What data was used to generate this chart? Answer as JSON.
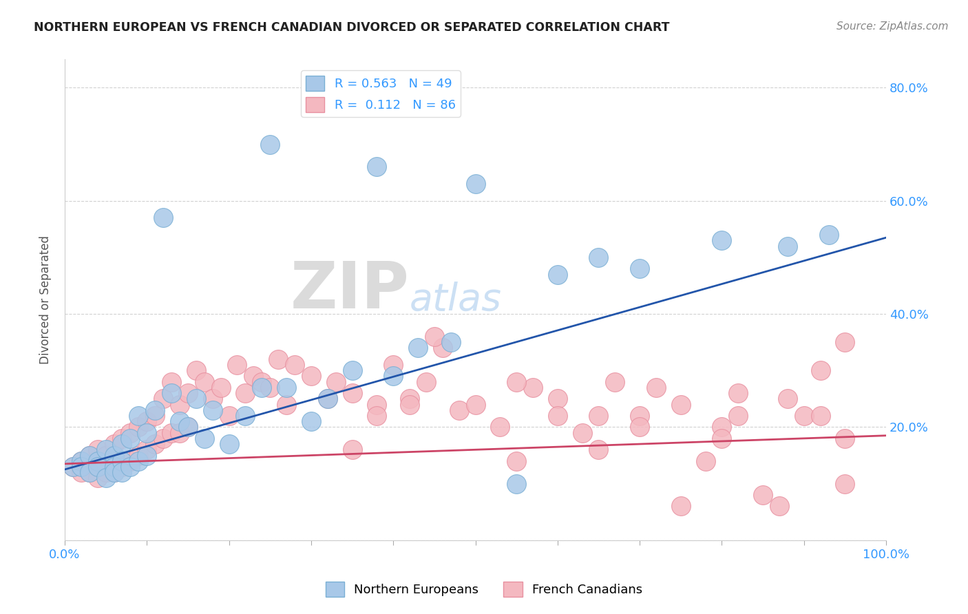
{
  "title": "NORTHERN EUROPEAN VS FRENCH CANADIAN DIVORCED OR SEPARATED CORRELATION CHART",
  "source": "Source: ZipAtlas.com",
  "ylabel": "Divorced or Separated",
  "xlabel": "",
  "xlim": [
    0.0,
    1.0
  ],
  "ylim": [
    0.0,
    0.85
  ],
  "xticks": [
    0.0,
    0.1,
    0.2,
    0.3,
    0.4,
    0.5,
    0.6,
    0.7,
    0.8,
    0.9,
    1.0
  ],
  "xticklabels": [
    "0.0%",
    "",
    "",
    "",
    "",
    "",
    "",
    "",
    "",
    "",
    "100.0%"
  ],
  "ytick_positions": [
    0.0,
    0.2,
    0.4,
    0.6,
    0.8
  ],
  "yticklabels": [
    "",
    "20.0%",
    "40.0%",
    "60.0%",
    "80.0%"
  ],
  "blue_color": "#a8c8e8",
  "pink_color": "#f4b8c0",
  "blue_edge_color": "#7aafd4",
  "pink_edge_color": "#e890a0",
  "blue_line_color": "#2255aa",
  "pink_line_color": "#cc4466",
  "watermark_zip": "ZIP",
  "watermark_atlas": "atlas",
  "title_color": "#222222",
  "axis_label_color": "#555555",
  "tick_color": "#3399ff",
  "grid_color": "#cccccc",
  "background_color": "#ffffff",
  "blue_line_x0": 0.0,
  "blue_line_y0": 0.125,
  "blue_line_x1": 1.0,
  "blue_line_y1": 0.535,
  "pink_line_x0": 0.0,
  "pink_line_y0": 0.135,
  "pink_line_x1": 1.0,
  "pink_line_y1": 0.185,
  "blue_scatter_x": [
    0.01,
    0.02,
    0.02,
    0.03,
    0.03,
    0.04,
    0.04,
    0.05,
    0.05,
    0.06,
    0.06,
    0.06,
    0.07,
    0.07,
    0.07,
    0.08,
    0.08,
    0.09,
    0.09,
    0.1,
    0.1,
    0.11,
    0.12,
    0.13,
    0.14,
    0.15,
    0.16,
    0.17,
    0.18,
    0.2,
    0.22,
    0.24,
    0.25,
    0.27,
    0.3,
    0.32,
    0.35,
    0.38,
    0.4,
    0.43,
    0.47,
    0.5,
    0.55,
    0.6,
    0.65,
    0.7,
    0.8,
    0.88,
    0.93
  ],
  "blue_scatter_y": [
    0.13,
    0.14,
    0.13,
    0.15,
    0.12,
    0.14,
    0.13,
    0.16,
    0.11,
    0.15,
    0.13,
    0.12,
    0.17,
    0.14,
    0.12,
    0.18,
    0.13,
    0.22,
    0.14,
    0.19,
    0.15,
    0.23,
    0.57,
    0.26,
    0.21,
    0.2,
    0.25,
    0.18,
    0.23,
    0.17,
    0.22,
    0.27,
    0.7,
    0.27,
    0.21,
    0.25,
    0.3,
    0.66,
    0.29,
    0.34,
    0.35,
    0.63,
    0.1,
    0.47,
    0.5,
    0.48,
    0.53,
    0.52,
    0.54
  ],
  "pink_scatter_x": [
    0.01,
    0.02,
    0.02,
    0.03,
    0.03,
    0.04,
    0.04,
    0.05,
    0.05,
    0.06,
    0.06,
    0.07,
    0.07,
    0.08,
    0.08,
    0.09,
    0.09,
    0.1,
    0.1,
    0.11,
    0.11,
    0.12,
    0.12,
    0.13,
    0.13,
    0.14,
    0.14,
    0.15,
    0.15,
    0.16,
    0.17,
    0.18,
    0.19,
    0.2,
    0.21,
    0.22,
    0.23,
    0.24,
    0.25,
    0.26,
    0.27,
    0.28,
    0.3,
    0.32,
    0.33,
    0.35,
    0.38,
    0.4,
    0.42,
    0.44,
    0.46,
    0.48,
    0.5,
    0.53,
    0.55,
    0.57,
    0.6,
    0.63,
    0.65,
    0.67,
    0.7,
    0.72,
    0.75,
    0.78,
    0.8,
    0.82,
    0.85,
    0.88,
    0.9,
    0.92,
    0.95,
    0.95,
    0.45,
    0.35,
    0.38,
    0.42,
    0.55,
    0.6,
    0.65,
    0.7,
    0.75,
    0.8,
    0.82,
    0.87,
    0.92,
    0.95
  ],
  "pink_scatter_y": [
    0.13,
    0.14,
    0.12,
    0.15,
    0.12,
    0.16,
    0.11,
    0.15,
    0.12,
    0.17,
    0.12,
    0.18,
    0.13,
    0.19,
    0.14,
    0.2,
    0.15,
    0.21,
    0.16,
    0.22,
    0.17,
    0.25,
    0.18,
    0.28,
    0.19,
    0.24,
    0.19,
    0.26,
    0.2,
    0.3,
    0.28,
    0.25,
    0.27,
    0.22,
    0.31,
    0.26,
    0.29,
    0.28,
    0.27,
    0.32,
    0.24,
    0.31,
    0.29,
    0.25,
    0.28,
    0.26,
    0.24,
    0.31,
    0.25,
    0.28,
    0.34,
    0.23,
    0.24,
    0.2,
    0.14,
    0.27,
    0.25,
    0.19,
    0.22,
    0.28,
    0.22,
    0.27,
    0.24,
    0.14,
    0.2,
    0.22,
    0.08,
    0.25,
    0.22,
    0.3,
    0.1,
    0.18,
    0.36,
    0.16,
    0.22,
    0.24,
    0.28,
    0.22,
    0.16,
    0.2,
    0.06,
    0.18,
    0.26,
    0.06,
    0.22,
    0.35
  ]
}
